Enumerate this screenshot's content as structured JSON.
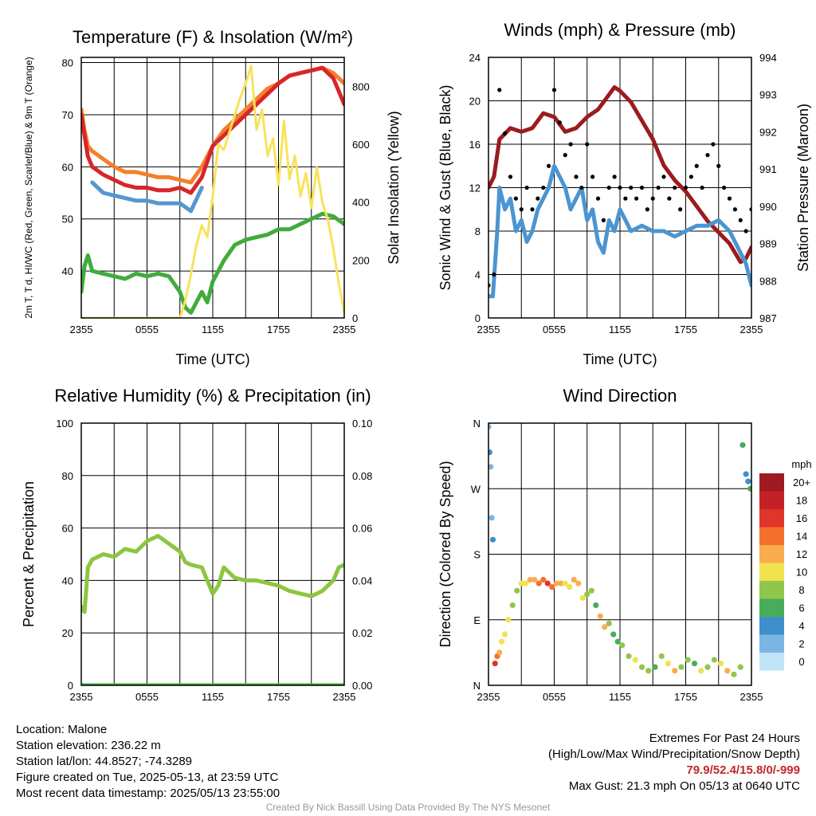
{
  "colors": {
    "temp_red": "#d7262b",
    "temp_orange": "#f57f2a",
    "temp_blue": "#5597cf",
    "temp_green": "#41ab3b",
    "insolation_yellow": "#f7e35a",
    "wind_blue": "#4a95d2",
    "gust_black": "#000000",
    "pressure_maroon": "#9b1b1e",
    "rh_green": "#8cc63f",
    "precip_green": "#41ab3b"
  },
  "chart_data": [
    {
      "id": "temperature",
      "type": "line",
      "title": "Temperature (F) & Insolation (W/m²)",
      "xlabel": "Time (UTC)",
      "ylabel_left": "2m T, T d, HI/WC (Red, Green, Scarlet/Blue) & 9m T (Orange)",
      "ylabel_right": "Solar Insolation (Yellow)",
      "x_ticks": [
        "2355",
        "0555",
        "1155",
        "1755",
        "2355"
      ],
      "x_range": [
        0,
        24
      ],
      "ylim_left": [
        31,
        81
      ],
      "y_ticks_left": [
        40,
        50,
        60,
        70,
        80
      ],
      "ylim_right": [
        0,
        900
      ],
      "y_ticks_right": [
        0,
        200,
        400,
        600,
        800
      ],
      "grid": true,
      "series": [
        {
          "key": "temp_9m",
          "axis": "left",
          "color": "#f57f2a",
          "x": [
            0,
            0.3,
            0.6,
            1,
            2,
            3,
            4,
            5,
            6,
            7,
            8,
            9,
            10,
            11,
            12,
            13,
            14,
            15,
            16,
            17,
            18,
            19,
            20,
            21,
            22,
            23,
            24
          ],
          "y": [
            71,
            67,
            64,
            63,
            61.5,
            60,
            59,
            59,
            58.5,
            58,
            58,
            57.5,
            57,
            60,
            64,
            67,
            69,
            71,
            73,
            75,
            76,
            77.5,
            78,
            78.5,
            79,
            78,
            76
          ]
        },
        {
          "key": "temp_2m",
          "axis": "left",
          "color": "#d7262b",
          "x": [
            0,
            0.3,
            0.6,
            1,
            2,
            3,
            4,
            5,
            6,
            7,
            8,
            9,
            10,
            11,
            12,
            13,
            14,
            15,
            16,
            17,
            18,
            19,
            20,
            21,
            22,
            23,
            24
          ],
          "y": [
            70,
            66,
            62,
            60,
            58.5,
            57.5,
            56.5,
            56,
            56,
            55.5,
            55.5,
            56,
            55,
            58,
            64,
            66,
            68,
            70,
            72,
            74,
            76,
            77.5,
            78,
            78.5,
            79,
            77,
            72
          ]
        },
        {
          "key": "heat_index_wind_chill",
          "axis": "left",
          "color": "#5597cf",
          "x": [
            1,
            2,
            3,
            4,
            5,
            6,
            7,
            8,
            9,
            10,
            11
          ],
          "y": [
            57,
            55,
            54.5,
            54,
            53.5,
            53.5,
            53,
            53,
            53,
            51.5,
            56
          ]
        },
        {
          "key": "dewpoint",
          "axis": "left",
          "color": "#41ab3b",
          "x": [
            0,
            0.3,
            0.6,
            1,
            2,
            3,
            4,
            5,
            6,
            7,
            8,
            9,
            9.5,
            10,
            10.5,
            11,
            11.5,
            12,
            13,
            14,
            15,
            16,
            17,
            18,
            19,
            20,
            21,
            22,
            23,
            24
          ],
          "y": [
            36,
            41,
            43,
            40,
            39.5,
            39,
            38.5,
            39.5,
            39,
            39.5,
            39,
            36,
            33,
            32,
            34,
            36,
            34,
            38,
            42,
            45,
            46,
            46.5,
            47,
            48,
            48,
            49,
            50,
            51,
            50.5,
            49
          ]
        },
        {
          "key": "insolation",
          "axis": "right",
          "color": "#f7e35a",
          "x": [
            0,
            1,
            2,
            3,
            4,
            5,
            6,
            7,
            8,
            9,
            9.5,
            10,
            10.5,
            11,
            11.5,
            12,
            12.5,
            13,
            13.5,
            14,
            14.5,
            15,
            15.5,
            16,
            16.5,
            17,
            17.5,
            18,
            18.5,
            19,
            19.5,
            20,
            20.5,
            21,
            21.5,
            22,
            22.5,
            23,
            23.5,
            24
          ],
          "y": [
            0,
            0,
            0,
            0,
            0,
            0,
            0,
            0,
            0,
            0,
            60,
            150,
            250,
            320,
            280,
            420,
            600,
            580,
            640,
            700,
            760,
            810,
            870,
            650,
            720,
            560,
            620,
            460,
            680,
            480,
            560,
            420,
            500,
            380,
            520,
            400,
            340,
            240,
            120,
            20
          ]
        }
      ]
    },
    {
      "id": "winds",
      "type": "line",
      "title": "Winds (mph) & Pressure (mb)",
      "xlabel": "Time (UTC)",
      "ylabel_left": "Sonic Wind & Gust (Blue, Black)",
      "ylabel_right": "Station Pressure (Maroon)",
      "x_ticks": [
        "2355",
        "0555",
        "1155",
        "1755",
        "2355"
      ],
      "x_range": [
        0,
        24
      ],
      "ylim_left": [
        0,
        24
      ],
      "y_ticks_left": [
        0,
        4,
        8,
        12,
        16,
        20,
        24
      ],
      "ylim_right": [
        987,
        994
      ],
      "y_ticks_right": [
        987,
        988,
        989,
        990,
        991,
        992,
        993,
        994
      ],
      "grid": true,
      "series": [
        {
          "key": "pressure",
          "axis": "right",
          "color": "#9b1b1e",
          "x": [
            0,
            0.5,
            1,
            2,
            3,
            4,
            5,
            6,
            7,
            8,
            9,
            10,
            11,
            11.5,
            12,
            13,
            14,
            15,
            16,
            17,
            18,
            19,
            20,
            21,
            22,
            23,
            23.5,
            24
          ],
          "y": [
            990.5,
            990.8,
            991.8,
            992.1,
            992.0,
            992.1,
            992.5,
            992.4,
            992.0,
            992.1,
            992.4,
            992.6,
            993.0,
            993.2,
            993.1,
            992.8,
            992.3,
            991.8,
            991.1,
            990.7,
            990.4,
            990.0,
            989.6,
            989.3,
            989.0,
            988.5,
            988.6,
            988.9
          ]
        },
        {
          "key": "sonic_wind",
          "axis": "left",
          "color": "#4a95d2",
          "x": [
            0,
            0.4,
            0.8,
            1,
            1.5,
            2,
            2.5,
            3,
            3.5,
            4,
            4.5,
            5,
            5.5,
            6,
            6.5,
            7,
            7.5,
            8,
            8.5,
            9,
            9.5,
            10,
            10.5,
            11,
            11.5,
            12,
            13,
            14,
            15,
            16,
            17,
            18,
            19,
            20,
            21,
            22,
            23,
            23.5,
            24
          ],
          "y": [
            2,
            2,
            8,
            12,
            10,
            11,
            8,
            9,
            7,
            8,
            10,
            11,
            12,
            14,
            13,
            12,
            10,
            11,
            12,
            9,
            10,
            7,
            6,
            9,
            8,
            10,
            8,
            8.5,
            8,
            8,
            7.5,
            8,
            8.5,
            8.5,
            9,
            8,
            6,
            5,
            3
          ]
        },
        {
          "key": "gust",
          "axis": "left",
          "type": "scatter",
          "color": "#000000",
          "x": [
            0,
            0.5,
            1,
            1.5,
            2,
            2.5,
            3,
            3.5,
            4,
            4.5,
            5,
            5.5,
            6,
            6.5,
            7,
            7.5,
            8,
            8.5,
            9,
            9.5,
            10,
            10.5,
            11,
            11.5,
            12,
            12.5,
            13,
            13.5,
            14,
            14.5,
            15,
            15.5,
            16,
            16.5,
            17,
            17.5,
            18,
            18.5,
            19,
            19.5,
            20,
            20.5,
            21,
            21.5,
            22,
            22.5,
            23,
            23.5,
            24
          ],
          "y": [
            3,
            4,
            21,
            17,
            13,
            11,
            10,
            12,
            10,
            11,
            12,
            14,
            21,
            18,
            15,
            16,
            13,
            12,
            16,
            13,
            11,
            9,
            12,
            13,
            12,
            11,
            12,
            11,
            12,
            10,
            11,
            12,
            13,
            11,
            12,
            10,
            12,
            13,
            14,
            12,
            15,
            16,
            14,
            12,
            11,
            10,
            9,
            8,
            10
          ]
        }
      ]
    },
    {
      "id": "humidity",
      "type": "line",
      "title": "Relative Humidity (%) & Precipitation (in)",
      "xlabel": "",
      "ylabel_left": "Percent & Precipitation",
      "x_ticks": [
        "2355",
        "0555",
        "1155",
        "1755",
        "2355"
      ],
      "x_range": [
        0,
        24
      ],
      "ylim_left": [
        0,
        100
      ],
      "y_ticks_left": [
        0,
        20,
        40,
        60,
        80,
        100
      ],
      "ylim_right": [
        0,
        0.1
      ],
      "y_ticks_right": [
        "0.00",
        "0.02",
        "0.04",
        "0.06",
        "0.08",
        "0.10"
      ],
      "grid": true,
      "series": [
        {
          "key": "rh",
          "axis": "left",
          "color": "#8cc63f",
          "x": [
            0,
            0.3,
            0.6,
            1,
            2,
            3,
            4,
            5,
            6,
            7,
            8,
            9,
            9.5,
            10,
            11,
            11.5,
            12,
            12.5,
            13,
            14,
            15,
            16,
            17,
            18,
            19,
            20,
            21,
            22,
            23,
            23.5,
            24
          ],
          "y": [
            30,
            28,
            45,
            48,
            50,
            49,
            52,
            51,
            55,
            57,
            54,
            51,
            47,
            46,
            45,
            40,
            35,
            38,
            45,
            41,
            40,
            40,
            39,
            38,
            36,
            35,
            34,
            36,
            40,
            45,
            46
          ]
        },
        {
          "key": "precip",
          "axis": "right",
          "color": "#41ab3b",
          "x": [
            0,
            24
          ],
          "y": [
            0,
            0
          ]
        }
      ]
    },
    {
      "id": "wind_direction",
      "type": "scatter",
      "title": "Wind Direction",
      "ylabel_left": "Direction (Colored By Speed)",
      "x_ticks": [
        "2355",
        "0555",
        "1155",
        "1755",
        "2355"
      ],
      "x_range": [
        0,
        24
      ],
      "ylim_left": [
        0,
        360
      ],
      "y_ticks_left": [
        "N",
        "E",
        "S",
        "W",
        "N"
      ],
      "grid": true,
      "legend": {
        "title": "mph",
        "labels": [
          "20+",
          "18",
          "16",
          "14",
          "12",
          "10",
          "8",
          "6",
          "4",
          "2",
          "0"
        ],
        "colors": [
          "#9e1b21",
          "#c42126",
          "#e0352b",
          "#f46f2e",
          "#f9ad4d",
          "#f1e24e",
          "#91c64d",
          "#49ac5a",
          "#3e8fca",
          "#7bb5e3",
          "#c1e5f7"
        ]
      },
      "points": {
        "x": [
          0,
          0.1,
          0.2,
          0.3,
          0.4,
          0.6,
          0.8,
          1.0,
          1.2,
          1.5,
          1.8,
          2.2,
          2.6,
          3,
          3.4,
          3.8,
          4.2,
          4.6,
          5,
          5.4,
          5.8,
          6.2,
          6.6,
          7,
          7.4,
          7.8,
          8.2,
          8.6,
          9,
          9.4,
          9.8,
          10.2,
          10.6,
          11,
          11.4,
          11.8,
          12.2,
          12.8,
          13.4,
          14,
          14.6,
          15.2,
          15.8,
          16.4,
          17,
          17.6,
          18.2,
          18.8,
          19.4,
          20,
          20.6,
          21.2,
          21.8,
          22.4,
          23,
          23.2,
          23.5,
          23.7,
          23.9
        ],
        "y": [
          355,
          320,
          300,
          230,
          200,
          30,
          40,
          45,
          60,
          70,
          90,
          110,
          130,
          140,
          140,
          145,
          145,
          140,
          145,
          140,
          135,
          140,
          140,
          140,
          135,
          145,
          140,
          120,
          125,
          130,
          110,
          95,
          80,
          85,
          70,
          60,
          55,
          40,
          35,
          25,
          20,
          25,
          40,
          30,
          20,
          25,
          35,
          30,
          20,
          25,
          35,
          30,
          20,
          15,
          25,
          330,
          290,
          280,
          270
        ],
        "speed": [
          3,
          4,
          3,
          2,
          4,
          17,
          14,
          13,
          11,
          10,
          10,
          9,
          8,
          10,
          11,
          12,
          13,
          14,
          15,
          16,
          14,
          13,
          12,
          11,
          10,
          13,
          12,
          10,
          9,
          8,
          7,
          13,
          12,
          8,
          7,
          6,
          8,
          9,
          10,
          9,
          8,
          7,
          9,
          10,
          12,
          9,
          8,
          7,
          10,
          9,
          8,
          11,
          12,
          9,
          8,
          6,
          4,
          5,
          7
        ]
      }
    }
  ],
  "footer": {
    "location": "Location: Malone",
    "elevation": "Station elevation: 236.22 m",
    "latlon": "Station lat/lon: 44.8527; -74.3289",
    "created": "Figure created on Tue, 2025-05-13, at 23:59 UTC",
    "recent": "Most recent data timestamp: 2025/05/13 23:55:00",
    "extremes_title": "Extremes For Past 24 Hours",
    "extremes_desc": "(High/Low/Max Wind/Precipitation/Snow Depth)",
    "extremes_values": "79.9/52.4/15.8/0/-999",
    "max_gust": "Max Gust: 21.3 mph On 05/13 at 0640 UTC",
    "credit": "Created By Nick Bassill Using Data Provided By The NYS Mesonet"
  }
}
